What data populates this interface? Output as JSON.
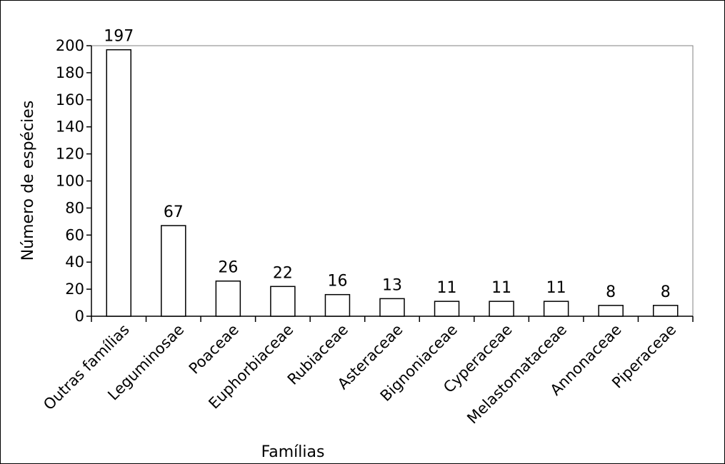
{
  "chart_data": {
    "type": "bar",
    "title": "",
    "xlabel": "Famílias",
    "ylabel": "Número de espécies",
    "categories": [
      "Outras famílias",
      "Leguminosae",
      "Poaceae",
      "Euphorbiaceae",
      "Rubiaceae",
      "Asteraceae",
      "Bignoniaceae",
      "Cyperaceae",
      "Melastomataceae",
      "Annonaceae",
      "Piperaceae"
    ],
    "values": [
      197,
      67,
      26,
      22,
      16,
      13,
      11,
      11,
      11,
      8,
      8
    ],
    "ylim": [
      0,
      200
    ],
    "yticks": [
      0,
      20,
      40,
      60,
      80,
      100,
      120,
      140,
      160,
      180,
      200
    ],
    "grid": false,
    "legend": "none",
    "colors": {
      "bar_fill": "#ffffff",
      "bar_stroke": "#000000",
      "background": "#ffffff"
    }
  }
}
